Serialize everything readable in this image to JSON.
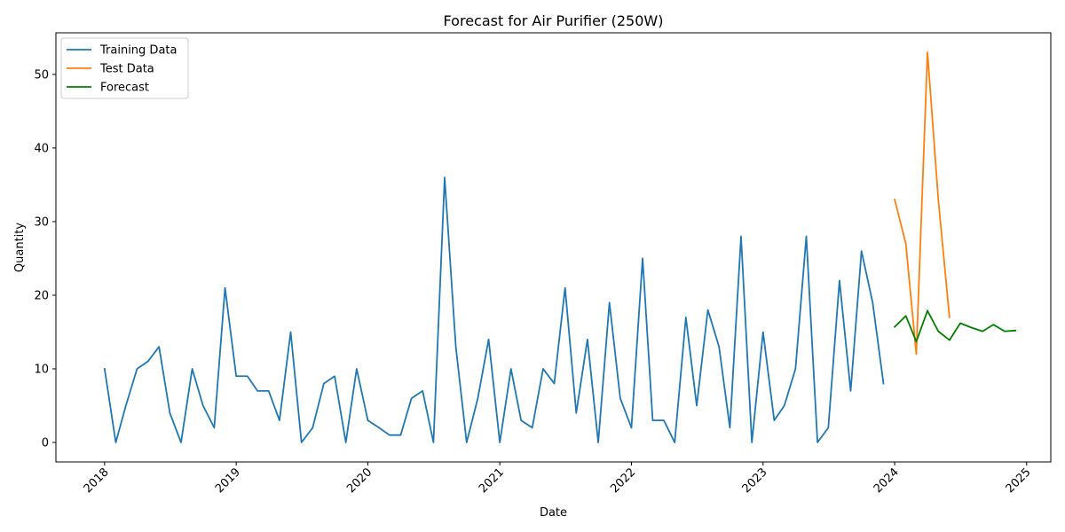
{
  "chart_data": {
    "type": "line",
    "title": "Forecast for Air Purifier (250W)",
    "xlabel": "Date",
    "ylabel": "Quantity",
    "xlim": [
      "2017-08-19",
      "2025-03-09"
    ],
    "ylim": [
      -2.65,
      55.65
    ],
    "x_ticks": [
      "2018",
      "2019",
      "2020",
      "2021",
      "2022",
      "2023",
      "2024",
      "2025"
    ],
    "y_ticks": [
      0,
      10,
      20,
      30,
      40,
      50
    ],
    "grid": false,
    "legend_position": "upper left",
    "colors": {
      "Training Data": "#1f77b4",
      "Test Data": "#ff7f0e",
      "Forecast": "#008000"
    },
    "series": [
      {
        "name": "Training Data",
        "x": [
          "2018-01",
          "2018-02",
          "2018-03",
          "2018-04",
          "2018-05",
          "2018-06",
          "2018-07",
          "2018-08",
          "2018-09",
          "2018-10",
          "2018-11",
          "2018-12",
          "2019-01",
          "2019-02",
          "2019-03",
          "2019-04",
          "2019-05",
          "2019-06",
          "2019-07",
          "2019-08",
          "2019-09",
          "2019-10",
          "2019-11",
          "2019-12",
          "2020-01",
          "2020-02",
          "2020-03",
          "2020-04",
          "2020-05",
          "2020-06",
          "2020-07",
          "2020-08",
          "2020-09",
          "2020-10",
          "2020-11",
          "2020-12",
          "2021-01",
          "2021-02",
          "2021-03",
          "2021-04",
          "2021-05",
          "2021-06",
          "2021-07",
          "2021-08",
          "2021-09",
          "2021-10",
          "2021-11",
          "2021-12",
          "2022-01",
          "2022-02",
          "2022-03",
          "2022-04",
          "2022-05",
          "2022-06",
          "2022-07",
          "2022-08",
          "2022-09",
          "2022-10",
          "2022-11",
          "2022-12",
          "2023-01",
          "2023-02",
          "2023-03",
          "2023-04",
          "2023-05",
          "2023-06",
          "2023-07",
          "2023-08",
          "2023-09",
          "2023-10",
          "2023-11",
          "2023-12"
        ],
        "values": [
          10,
          0,
          5,
          10,
          11,
          13,
          4,
          0,
          10,
          5,
          2,
          21,
          9,
          9,
          7,
          7,
          3,
          15,
          0,
          2,
          8,
          9,
          0,
          10,
          3,
          2,
          1,
          1,
          6,
          7,
          0,
          36,
          13,
          0,
          6,
          14,
          0,
          10,
          3,
          2,
          10,
          8,
          21,
          4,
          14,
          0,
          19,
          6,
          2,
          25,
          3,
          3,
          0,
          17,
          5,
          18,
          13,
          2,
          28,
          0,
          15,
          3,
          5,
          10,
          28,
          0,
          2,
          22,
          7,
          26,
          19,
          8
        ]
      },
      {
        "name": "Test Data",
        "x": [
          "2024-01",
          "2024-02",
          "2024-03",
          "2024-04",
          "2024-05",
          "2024-06"
        ],
        "values": [
          33,
          27,
          12,
          53,
          33,
          17
        ]
      },
      {
        "name": "Forecast",
        "x": [
          "2024-01",
          "2024-02",
          "2024-03",
          "2024-04",
          "2024-05",
          "2024-06",
          "2024-07",
          "2024-08",
          "2024-09",
          "2024-10",
          "2024-11",
          "2024-12"
        ],
        "values": [
          15.7,
          17.2,
          13.7,
          17.9,
          15.1,
          13.9,
          16.2,
          15.6,
          15.1,
          16.0,
          15.1,
          15.2
        ]
      }
    ]
  }
}
